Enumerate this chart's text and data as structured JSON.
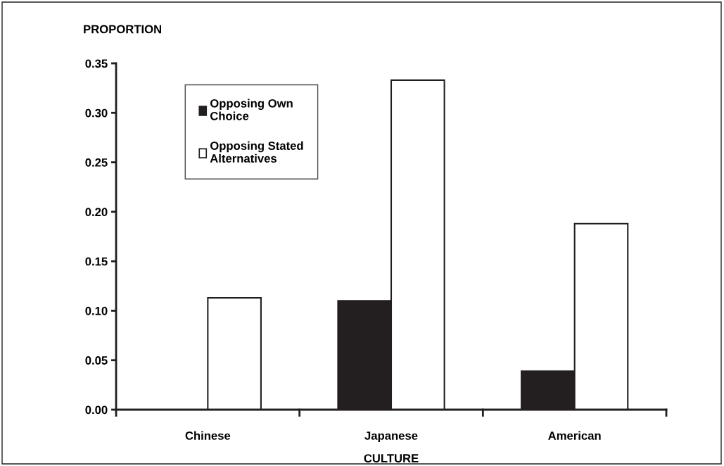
{
  "chart_data": {
    "type": "bar",
    "xlabel": "CULTURE",
    "ylabel": "PROPORTION",
    "categories": [
      "Chinese",
      "Japanese",
      "American"
    ],
    "series": [
      {
        "name": "Opposing Own\nChoice",
        "color": "#231f20",
        "values": [
          0,
          0.11,
          0.039
        ]
      },
      {
        "name": "Opposing Stated\nAlternatives",
        "color": "#ffffff",
        "values": [
          0.113,
          0.333,
          0.188
        ]
      }
    ],
    "ylim": [
      0,
      0.35
    ],
    "yticks": [
      {
        "value": 0,
        "label": "0.00"
      },
      {
        "value": 0.05,
        "label": "0.05"
      },
      {
        "value": 0.1,
        "label": "0.10"
      },
      {
        "value": 0.15,
        "label": "0.15"
      },
      {
        "value": 0.2,
        "label": "0.20"
      },
      {
        "value": 0.25,
        "label": "0.25"
      },
      {
        "value": 0.3,
        "label": "0.30"
      },
      {
        "value": 0.35,
        "label": "0.35"
      }
    ],
    "grid": false,
    "legend": "top left"
  }
}
